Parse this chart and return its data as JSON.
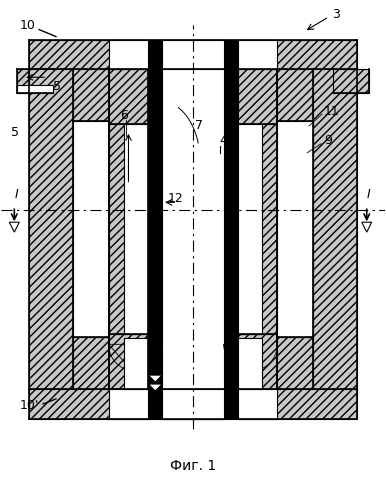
{
  "title": "Фиг. 1",
  "bg_color": "#ffffff",
  "fig_width": 3.86,
  "fig_height": 5.0,
  "dpi": 100
}
